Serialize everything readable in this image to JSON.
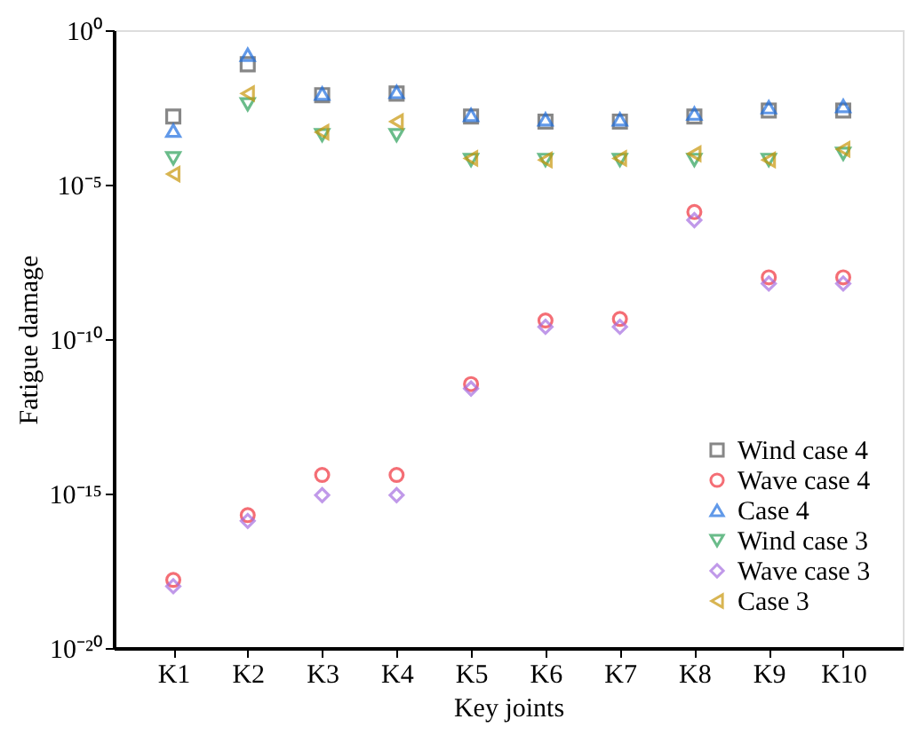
{
  "chart_data": {
    "type": "scatter",
    "xlabel": "Key joints",
    "ylabel": "Fatigue damage",
    "categories": [
      "K1",
      "K2",
      "K3",
      "K4",
      "K5",
      "K6",
      "K7",
      "K8",
      "K9",
      "K10"
    ],
    "log": "y",
    "grid": false,
    "legend": "bottom right",
    "ylim": [
      1e-20,
      1
    ],
    "yticks": [
      {
        "value": 1e-20,
        "label": "10⁻²⁰"
      },
      {
        "value": 1e-15,
        "label": "10⁻¹⁵"
      },
      {
        "value": 1e-10,
        "label": "10⁻¹⁰"
      },
      {
        "value": 1e-05,
        "label": "10⁻⁵"
      },
      {
        "value": 1,
        "label": "10⁰"
      }
    ],
    "series": [
      {
        "name": "Wind case 4",
        "color": "#555555",
        "marker": "square",
        "values": [
          0.0016,
          0.079,
          0.0079,
          0.0089,
          0.0016,
          0.0011,
          0.0011,
          0.0016,
          0.0025,
          0.0025
        ]
      },
      {
        "name": "Wave case 4",
        "color": "#f0323c",
        "marker": "circle",
        "values": [
          1.6e-18,
          2e-16,
          4e-15,
          4e-15,
          3.5e-12,
          4e-10,
          4.5e-10,
          1.3e-06,
          1e-08,
          1e-08
        ]
      },
      {
        "name": "Case 4",
        "color": "#1f6fe0",
        "marker": "triangle",
        "values": [
          0.00056,
          0.16,
          0.0089,
          0.01,
          0.0018,
          0.0013,
          0.0013,
          0.002,
          0.0032,
          0.0035
        ]
      },
      {
        "name": "Wind case 3",
        "color": "#2ca05a",
        "marker": "triangle-down",
        "values": [
          7.1e-05,
          0.004,
          0.0004,
          0.0004,
          6.3e-05,
          6.3e-05,
          6.3e-05,
          6.3e-05,
          6.3e-05,
          0.0001
        ]
      },
      {
        "name": "Wave case 3",
        "color": "#a66ee0",
        "marker": "diamond",
        "values": [
          1e-18,
          1.3e-16,
          8.9e-16,
          8.9e-16,
          2.5e-12,
          2.5e-10,
          2.5e-10,
          7.1e-07,
          6.3e-09,
          6.3e-09
        ]
      },
      {
        "name": "Case 3",
        "color": "#c8960a",
        "marker": "triangle-left",
        "values": [
          2.2e-05,
          0.0089,
          0.0005,
          0.0011,
          7.1e-05,
          6.3e-05,
          7.1e-05,
          0.0001,
          6.3e-05,
          0.00014
        ]
      }
    ]
  }
}
